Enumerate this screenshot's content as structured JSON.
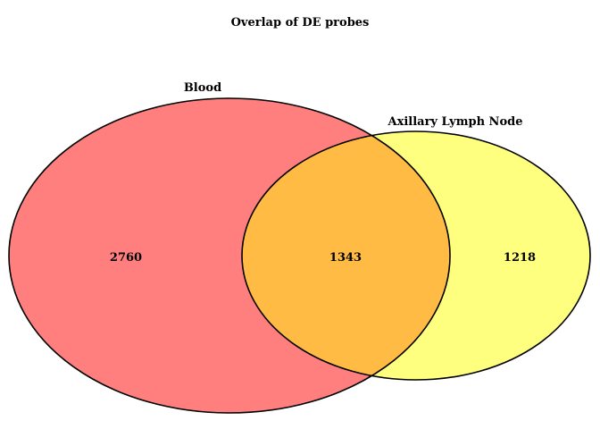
{
  "title": "Overlap of DE probes",
  "sets": [
    {
      "name": "Blood",
      "color": "#ff7f7f"
    },
    {
      "name": "Axillary Lymph Node",
      "color": "#ffff7f"
    }
  ],
  "overlap_color": "#ffbb44",
  "outline_color": "#000000",
  "counts": {
    "blood_only": "2760",
    "both": "1343",
    "lymph_only": "1218"
  }
}
